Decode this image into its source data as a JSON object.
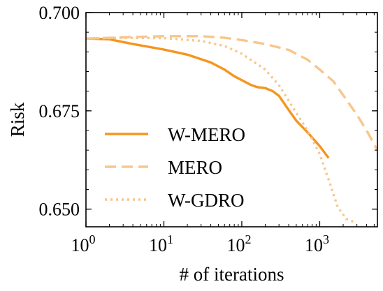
{
  "chart_data": {
    "type": "line",
    "title": "",
    "xlabel": "# of iterations",
    "ylabel": "Risk",
    "xscale": "log",
    "xlim": [
      1,
      5500
    ],
    "ylim": [
      0.6455,
      0.7
    ],
    "grid": false,
    "legend_placement": "lower-left",
    "x_ticks": [
      {
        "value": 1,
        "base": "10",
        "exp": "0"
      },
      {
        "value": 10,
        "base": "10",
        "exp": "1"
      },
      {
        "value": 100,
        "base": "10",
        "exp": "2"
      },
      {
        "value": 1000,
        "base": "10",
        "exp": "3"
      }
    ],
    "y_ticks": [
      {
        "value": 0.65,
        "label": "0.650"
      },
      {
        "value": 0.675,
        "label": "0.675"
      },
      {
        "value": 0.7,
        "label": "0.700"
      }
    ],
    "series": [
      {
        "name": "W-MERO",
        "color": "#f5951f",
        "style": "solid",
        "points": [
          [
            1,
            0.6934
          ],
          [
            2,
            0.6932
          ],
          [
            4,
            0.692
          ],
          [
            10,
            0.6906
          ],
          [
            20,
            0.6893
          ],
          [
            40,
            0.6873
          ],
          [
            60,
            0.6855
          ],
          [
            80,
            0.6838
          ],
          [
            100,
            0.6828
          ],
          [
            130,
            0.6816
          ],
          [
            160,
            0.681
          ],
          [
            200,
            0.6808
          ],
          [
            250,
            0.68
          ],
          [
            300,
            0.6788
          ],
          [
            400,
            0.6752
          ],
          [
            500,
            0.6725
          ],
          [
            700,
            0.6695
          ],
          [
            1000,
            0.666
          ],
          [
            1300,
            0.663
          ]
        ]
      },
      {
        "name": "MERO",
        "color": "#f8c68b",
        "style": "dashed",
        "points": [
          [
            1,
            0.6934
          ],
          [
            3,
            0.6937
          ],
          [
            10,
            0.694
          ],
          [
            30,
            0.694
          ],
          [
            60,
            0.6936
          ],
          [
            100,
            0.693
          ],
          [
            200,
            0.692
          ],
          [
            400,
            0.6905
          ],
          [
            700,
            0.688
          ],
          [
            1000,
            0.6855
          ],
          [
            1500,
            0.6825
          ],
          [
            2000,
            0.679
          ],
          [
            3000,
            0.674
          ],
          [
            4000,
            0.67
          ],
          [
            5500,
            0.665
          ]
        ]
      },
      {
        "name": "W-GDRO",
        "color": "#f8c68b",
        "style": "dotted",
        "points": [
          [
            1,
            0.6934
          ],
          [
            3,
            0.6936
          ],
          [
            10,
            0.6935
          ],
          [
            30,
            0.6928
          ],
          [
            60,
            0.6915
          ],
          [
            100,
            0.6895
          ],
          [
            200,
            0.6855
          ],
          [
            300,
            0.6815
          ],
          [
            500,
            0.6745
          ],
          [
            700,
            0.67
          ],
          [
            1000,
            0.664
          ],
          [
            1300,
            0.6575
          ],
          [
            1700,
            0.6505
          ],
          [
            2200,
            0.6475
          ],
          [
            2700,
            0.6468
          ]
        ]
      }
    ]
  }
}
